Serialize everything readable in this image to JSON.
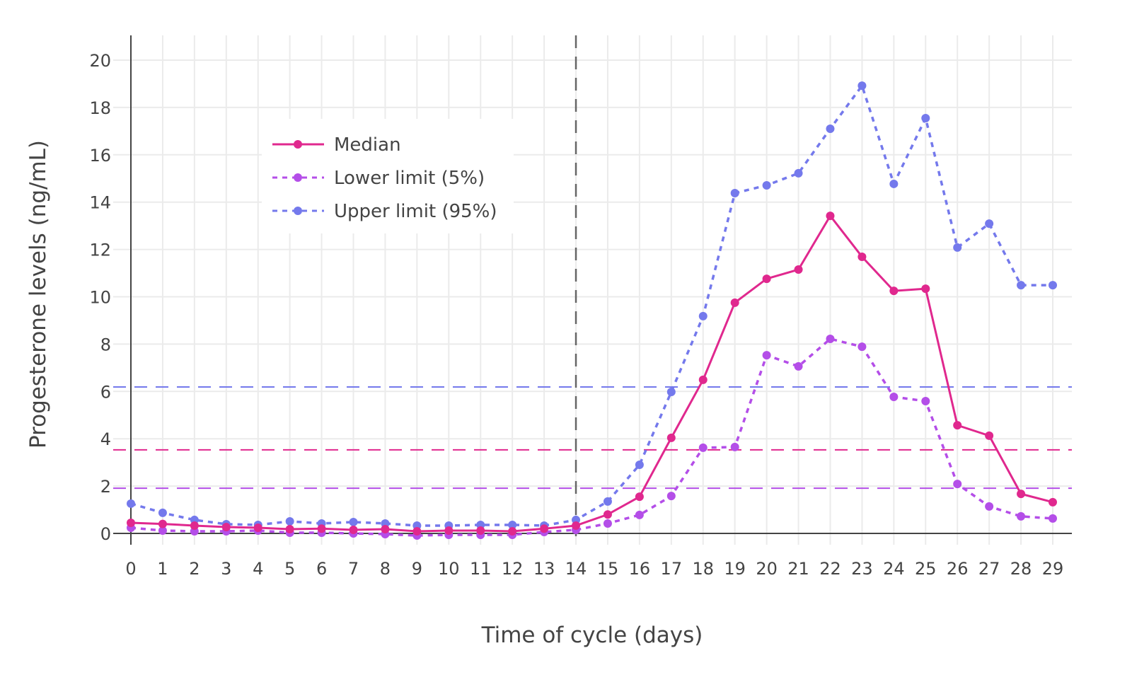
{
  "chart_data": {
    "type": "line",
    "xlabel": "Time of cycle (days)",
    "ylabel": "Progesterone levels (ng/mL)",
    "x": [
      0,
      1,
      2,
      3,
      4,
      5,
      6,
      7,
      8,
      9,
      10,
      11,
      12,
      13,
      14,
      15,
      16,
      17,
      18,
      19,
      20,
      21,
      22,
      23,
      24,
      25,
      26,
      27,
      28,
      29
    ],
    "xlim": [
      -0.55,
      29.6
    ],
    "ylim": [
      -0.5,
      21
    ],
    "yticks": [
      0,
      2,
      4,
      6,
      8,
      10,
      12,
      14,
      16,
      18,
      20
    ],
    "grid": true,
    "legend_position": "top-left",
    "series": [
      {
        "name": "Median",
        "color": "#e0288e",
        "dash": "solid",
        "values": [
          0.45,
          0.4,
          0.33,
          0.27,
          0.24,
          0.18,
          0.2,
          0.15,
          0.18,
          0.09,
          0.12,
          0.12,
          0.09,
          0.2,
          0.33,
          0.8,
          1.55,
          4.04,
          6.49,
          9.75,
          10.76,
          11.15,
          13.42,
          11.69,
          10.25,
          10.34,
          4.57,
          4.13,
          1.67,
          1.32
        ]
      },
      {
        "name": "Lower limit (5%)",
        "color": "#b44ee8",
        "dash": "dot",
        "values": [
          0.24,
          0.12,
          0.09,
          0.09,
          0.12,
          0.03,
          0.03,
          0.0,
          -0.03,
          -0.09,
          -0.06,
          -0.06,
          -0.06,
          0.06,
          0.15,
          0.42,
          0.78,
          1.58,
          3.62,
          3.65,
          7.53,
          7.06,
          8.22,
          7.89,
          5.77,
          5.59,
          2.09,
          1.14,
          0.72,
          0.63
        ]
      },
      {
        "name": "Upper limit (95%)",
        "color": "#7479ec",
        "dash": "dot",
        "values": [
          1.26,
          0.87,
          0.57,
          0.39,
          0.36,
          0.51,
          0.42,
          0.48,
          0.42,
          0.33,
          0.33,
          0.36,
          0.36,
          0.33,
          0.57,
          1.35,
          2.9,
          5.98,
          9.18,
          14.38,
          14.71,
          15.22,
          17.1,
          18.92,
          14.77,
          17.55,
          12.08,
          13.09,
          10.49,
          10.49
        ]
      }
    ],
    "reference_lines": [
      {
        "axis": "y",
        "value": 6.19,
        "color": "#7479ec",
        "dash": "dash"
      },
      {
        "axis": "y",
        "value": 3.53,
        "color": "#e0288e",
        "dash": "dash"
      },
      {
        "axis": "y",
        "value": 1.91,
        "color": "#b44ee8",
        "dash": "dash"
      },
      {
        "axis": "x",
        "value": 14,
        "color": "#666666",
        "dash": "dash"
      }
    ]
  }
}
